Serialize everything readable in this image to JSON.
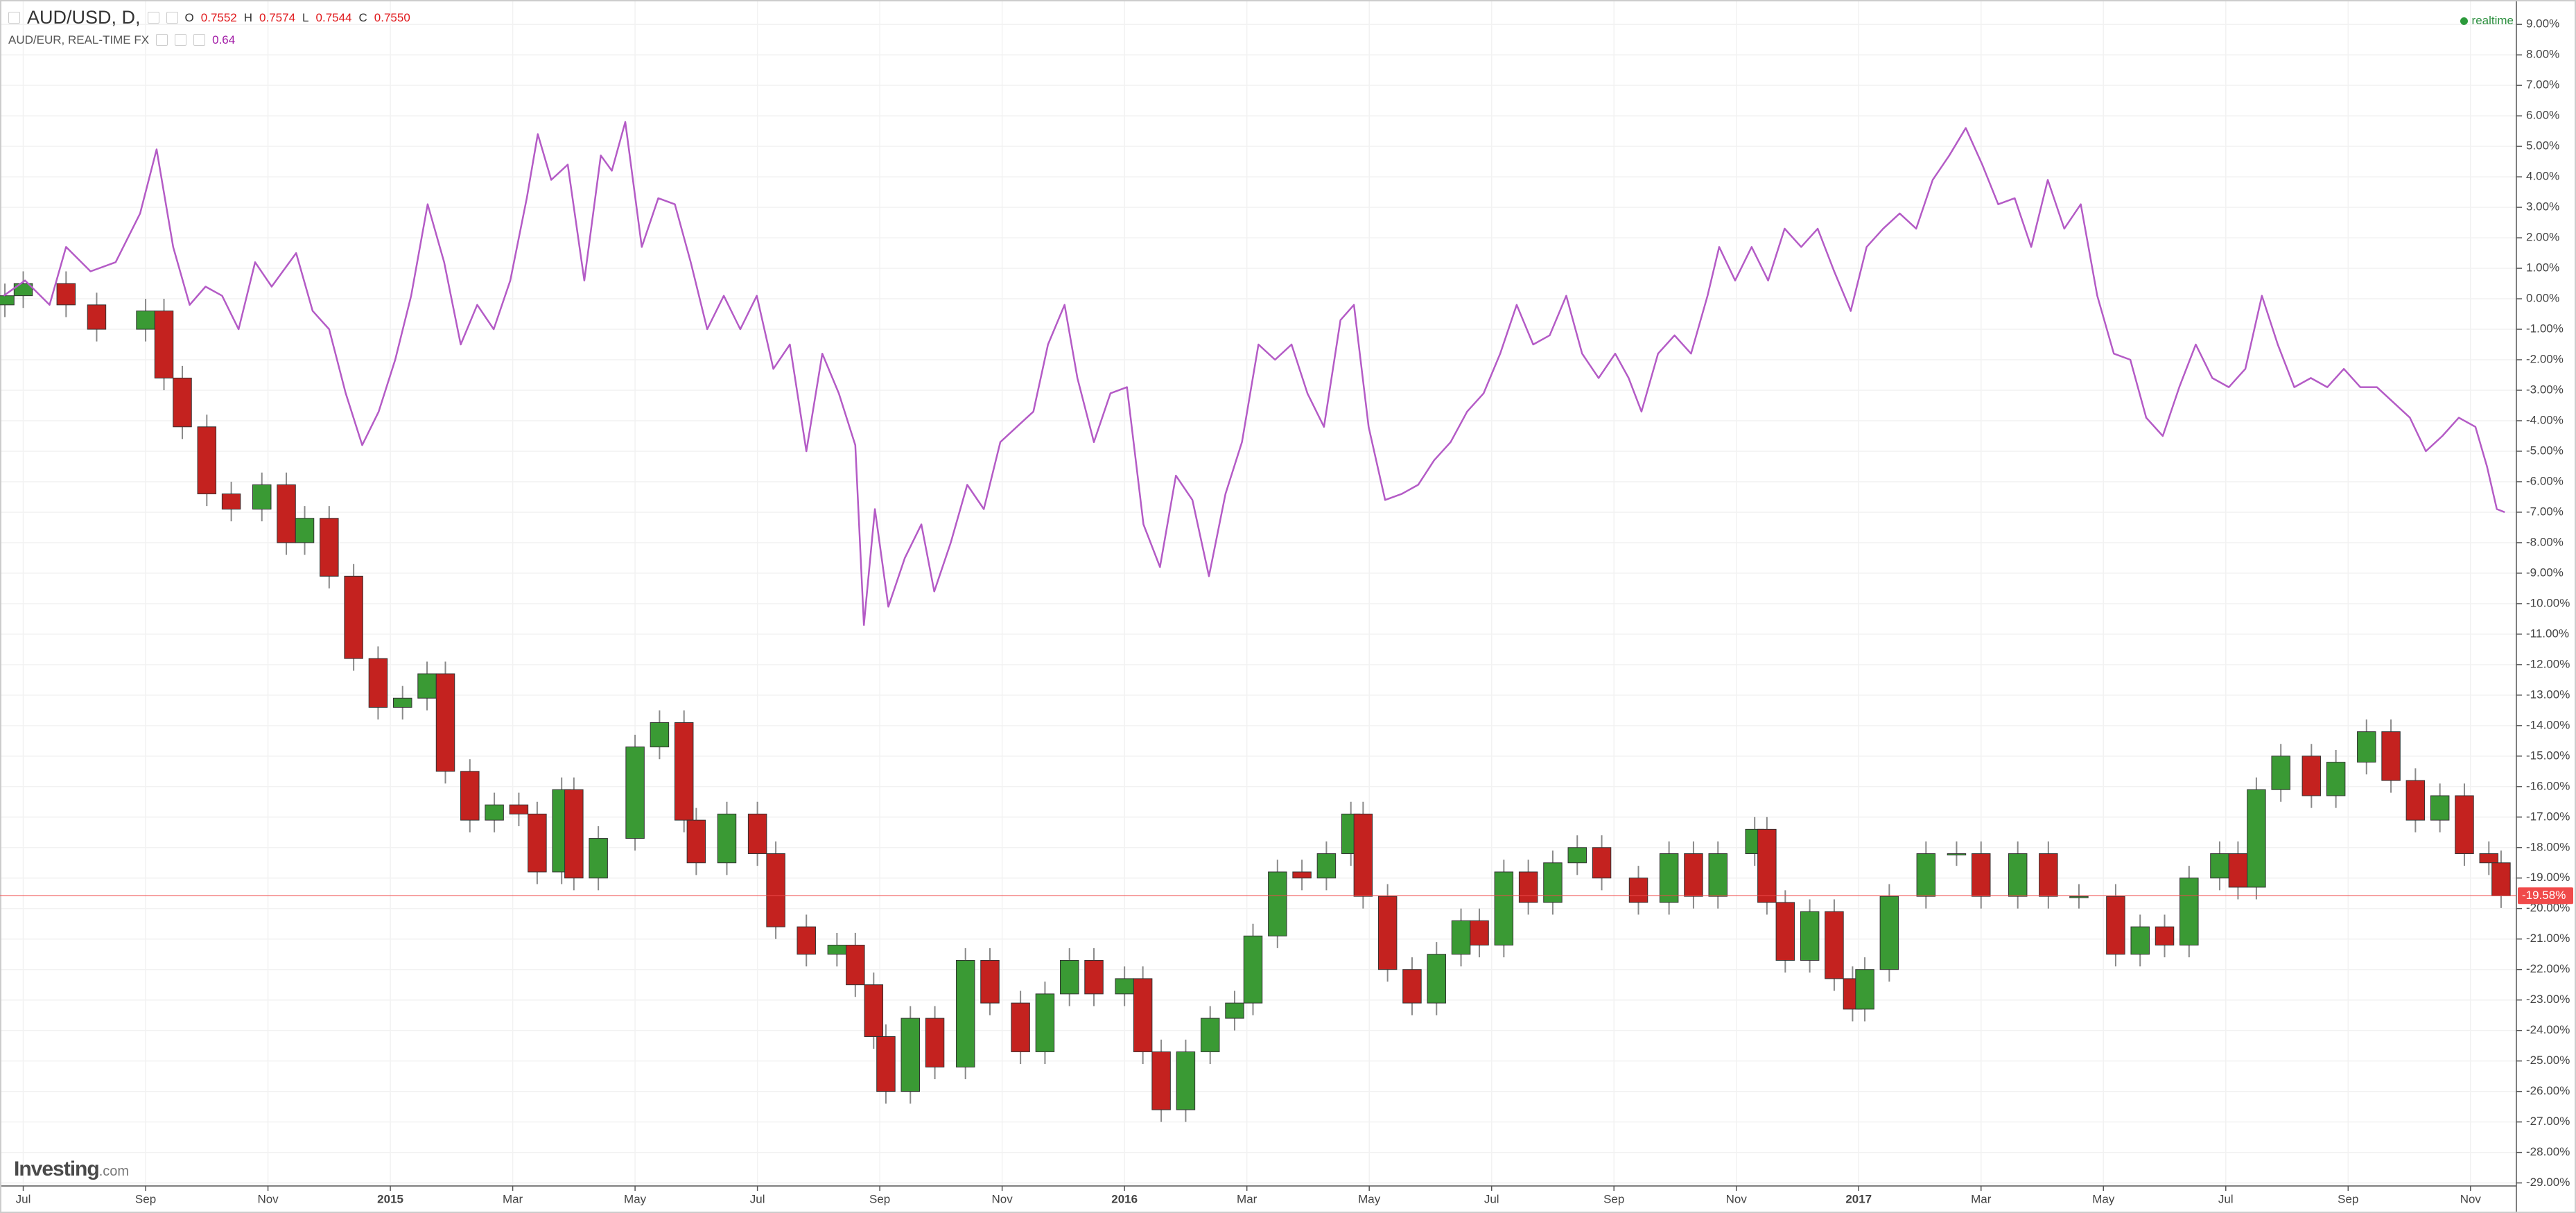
{
  "header": {
    "symbol": "AUD/USD, D,",
    "ohlc": [
      {
        "label": "O",
        "value": "0.7552"
      },
      {
        "label": "H",
        "value": "0.7574"
      },
      {
        "label": "L",
        "value": "0.7544"
      },
      {
        "label": "C",
        "value": "0.7550"
      }
    ],
    "compare": {
      "name": "AUD/EUR, REAL-TIME FX",
      "value": "0.64"
    },
    "status": "realtime",
    "logo": {
      "main": "Investing",
      "suffix": ".com"
    }
  },
  "chart_data": {
    "type": "candlestick",
    "grid": true,
    "xlim": [
      -0.38,
      40.75
    ],
    "xticks": [
      {
        "value": 0,
        "label": "Jul"
      },
      {
        "value": 2,
        "label": "Sep"
      },
      {
        "value": 4,
        "label": "Nov"
      },
      {
        "value": 6,
        "label": "2015"
      },
      {
        "value": 8,
        "label": "Mar"
      },
      {
        "value": 10,
        "label": "May"
      },
      {
        "value": 12,
        "label": "Jul"
      },
      {
        "value": 14,
        "label": "Sep"
      },
      {
        "value": 16,
        "label": "Nov"
      },
      {
        "value": 18,
        "label": "2016"
      },
      {
        "value": 20,
        "label": "Mar"
      },
      {
        "value": 22,
        "label": "May"
      },
      {
        "value": 24,
        "label": "Jul"
      },
      {
        "value": 26,
        "label": "Sep"
      },
      {
        "value": 28,
        "label": "Nov"
      },
      {
        "value": 30,
        "label": "2017"
      },
      {
        "value": 32,
        "label": "Mar"
      },
      {
        "value": 34,
        "label": "May"
      },
      {
        "value": 36,
        "label": "Jul"
      },
      {
        "value": 38,
        "label": "Sep"
      },
      {
        "value": 40,
        "label": "Nov"
      }
    ],
    "ylim": [
      -29.1,
      9.8
    ],
    "yticks": [
      {
        "value": 9,
        "label": "9.00%"
      },
      {
        "value": 8,
        "label": "8.00%"
      },
      {
        "value": 7,
        "label": "7.00%"
      },
      {
        "value": 6,
        "label": "6.00%"
      },
      {
        "value": 5,
        "label": "5.00%"
      },
      {
        "value": 4,
        "label": "4.00%"
      },
      {
        "value": 3,
        "label": "3.00%"
      },
      {
        "value": 2,
        "label": "2.00%"
      },
      {
        "value": 1,
        "label": "1.00%"
      },
      {
        "value": 0,
        "label": "0.00%"
      },
      {
        "value": -1,
        "label": "-1.00%"
      },
      {
        "value": -2,
        "label": "-2.00%"
      },
      {
        "value": -3,
        "label": "-3.00%"
      },
      {
        "value": -4,
        "label": "-4.00%"
      },
      {
        "value": -5,
        "label": "-5.00%"
      },
      {
        "value": -6,
        "label": "-6.00%"
      },
      {
        "value": -7,
        "label": "-7.00%"
      },
      {
        "value": -8,
        "label": "-8.00%"
      },
      {
        "value": -9,
        "label": "-9.00%"
      },
      {
        "value": -10,
        "label": "-10.00%"
      },
      {
        "value": -11,
        "label": "-11.00%"
      },
      {
        "value": -12,
        "label": "-12.00%"
      },
      {
        "value": -13,
        "label": "-13.00%"
      },
      {
        "value": -14,
        "label": "-14.00%"
      },
      {
        "value": -15,
        "label": "-15.00%"
      },
      {
        "value": -16,
        "label": "-16.00%"
      },
      {
        "value": -17,
        "label": "-17.00%"
      },
      {
        "value": -18,
        "label": "-18.00%"
      },
      {
        "value": -19,
        "label": "-19.00%"
      },
      {
        "value": -20,
        "label": "-20.00%"
      },
      {
        "value": -21,
        "label": "-21.00%"
      },
      {
        "value": -22,
        "label": "-22.00%"
      },
      {
        "value": -23,
        "label": "-23.00%"
      },
      {
        "value": -24,
        "label": "-24.00%"
      },
      {
        "value": -25,
        "label": "-25.00%"
      },
      {
        "value": -26,
        "label": "-26.00%"
      },
      {
        "value": -27,
        "label": "-27.00%"
      },
      {
        "value": -28,
        "label": "-28.00%"
      },
      {
        "value": -29,
        "label": "-29.00%"
      }
    ],
    "series": [
      {
        "type": "candlestick",
        "up_color": "#3a9a34",
        "down_color": "#c4221f",
        "wick_color": "#8a8a8a",
        "x": [
          -0.3,
          0,
          0.7,
          1.2,
          2,
          2.3,
          2.6,
          3,
          3.4,
          3.9,
          4.3,
          4.6,
          5,
          5.4,
          5.8,
          6.2,
          6.6,
          6.9,
          7.3,
          7.7,
          8.1,
          8.4,
          8.8,
          9,
          9.4,
          10,
          10.4,
          10.8,
          11,
          11.5,
          12,
          12.3,
          12.8,
          13.3,
          13.6,
          13.9,
          14.1,
          14.5,
          14.9,
          15.4,
          15.8,
          16.3,
          16.7,
          17.1,
          17.5,
          18,
          18.3,
          18.6,
          19,
          19.4,
          19.8,
          20.1,
          20.5,
          20.9,
          21.3,
          21.7,
          21.9,
          22.3,
          22.7,
          23.1,
          23.5,
          23.8,
          24.2,
          24.6,
          25,
          25.4,
          25.8,
          26.4,
          26.9,
          27.3,
          27.7,
          28.3,
          28.5,
          28.8,
          29.2,
          29.6,
          29.9,
          30.1,
          30.5,
          31.1,
          31.6,
          32,
          32.6,
          33.1,
          33.6,
          34.2,
          34.6,
          35,
          35.4,
          35.9,
          36.2,
          36.5,
          36.9,
          37.4,
          37.8,
          38.3,
          38.7,
          39.1,
          39.5,
          39.9,
          40.3,
          40.5
        ],
        "open": [
          -0.2,
          0.1,
          0.5,
          -0.2,
          -1,
          -0.4,
          -2.6,
          -4.2,
          -6.4,
          -6.9,
          -6.1,
          -8,
          -7.2,
          -9.1,
          -11.8,
          -13.4,
          -13.1,
          -12.3,
          -15.5,
          -17.1,
          -16.6,
          -16.9,
          -18.8,
          -16.1,
          -19,
          -17.7,
          -14.7,
          -13.9,
          -17.1,
          -18.5,
          -16.9,
          -18.2,
          -20.6,
          -21.5,
          -21.2,
          -22.5,
          -24.2,
          -26,
          -23.6,
          -25.2,
          -21.7,
          -23.1,
          -24.7,
          -22.8,
          -21.7,
          -22.8,
          -22.3,
          -24.7,
          -26.6,
          -24.7,
          -23.6,
          -23.1,
          -20.9,
          -18.8,
          -19,
          -18.2,
          -16.9,
          -19.6,
          -22,
          -23.1,
          -21.5,
          -20.4,
          -21.2,
          -18.8,
          -19.8,
          -18.5,
          -18,
          -19,
          -19.8,
          -18.2,
          -19.6,
          -18.2,
          -17.4,
          -19.8,
          -21.7,
          -20.1,
          -22.3,
          -23.3,
          -22,
          -19.6,
          -18.2,
          -18.2,
          -19.6,
          -18.2,
          -19.6,
          -19.6,
          -21.5,
          -20.6,
          -21.2,
          -19,
          -18.2,
          -19.3,
          -16.1,
          -15,
          -16.3,
          -15.2,
          -14.2,
          -15.8,
          -17.1,
          -16.3,
          -18.2,
          -18.5
        ],
        "high": [
          0.5,
          0.9,
          0.9,
          0.2,
          0,
          0,
          -2.2,
          -3.8,
          -6,
          -5.7,
          -5.7,
          -6.8,
          -6.8,
          -8.7,
          -11.4,
          -12.7,
          -11.9,
          -11.9,
          -15.1,
          -16.2,
          -16.2,
          -16.5,
          -15.7,
          -15.7,
          -17.3,
          -14.3,
          -13.5,
          -13.5,
          -16.7,
          -16.5,
          -16.5,
          -17.8,
          -20.2,
          -20.8,
          -20.8,
          -22.1,
          -23.8,
          -23.2,
          -23.2,
          -21.3,
          -21.3,
          -22.7,
          -22.4,
          -21.3,
          -21.3,
          -21.9,
          -21.9,
          -24.3,
          -24.3,
          -23.2,
          -22.7,
          -20.5,
          -18.4,
          -18.4,
          -17.8,
          -16.5,
          -16.5,
          -19.2,
          -21.6,
          -21.1,
          -20,
          -20,
          -18.4,
          -18.4,
          -18.1,
          -17.6,
          -17.6,
          -18.6,
          -17.8,
          -17.8,
          -17.8,
          -17,
          -17,
          -19.4,
          -19.7,
          -19.7,
          -21.9,
          -21.6,
          -19.2,
          -17.8,
          -17.8,
          -17.8,
          -17.8,
          -17.8,
          -19.2,
          -19.2,
          -20.2,
          -20.2,
          -18.6,
          -17.8,
          -17.8,
          -15.7,
          -14.6,
          -14.6,
          -14.8,
          -13.8,
          -13.8,
          -15.4,
          -15.9,
          -15.9,
          -17.8,
          -18.1
        ],
        "low": [
          -0.6,
          -0.3,
          -0.6,
          -1.4,
          -1.4,
          -3,
          -4.6,
          -6.8,
          -7.3,
          -7.3,
          -8.4,
          -8.4,
          -9.5,
          -12.2,
          -13.8,
          -13.8,
          -13.5,
          -15.9,
          -17.5,
          -17.5,
          -17.3,
          -19.2,
          -19.2,
          -19.4,
          -19.4,
          -18.1,
          -15.1,
          -17.5,
          -18.9,
          -18.9,
          -18.6,
          -21,
          -21.9,
          -21.9,
          -22.9,
          -24.6,
          -26.4,
          -26.4,
          -25.6,
          -25.6,
          -23.5,
          -25.1,
          -25.1,
          -23.2,
          -23.2,
          -23.2,
          -25.1,
          -27,
          -27,
          -25.1,
          -24,
          -23.5,
          -21.3,
          -19.4,
          -19.4,
          -18.6,
          -20,
          -22.4,
          -23.5,
          -23.5,
          -21.9,
          -21.6,
          -21.6,
          -20.2,
          -20.2,
          -18.9,
          -19.4,
          -20.2,
          -20.2,
          -20,
          -20,
          -18.6,
          -20.2,
          -22.1,
          -22.1,
          -22.7,
          -23.7,
          -23.7,
          -22.4,
          -20,
          -18.6,
          -20,
          -20,
          -20,
          -20,
          -21.9,
          -21.9,
          -21.6,
          -21.6,
          -19.4,
          -19.7,
          -19.7,
          -16.5,
          -16.7,
          -16.7,
          -15.6,
          -16.2,
          -17.5,
          -17.5,
          -18.6,
          -18.9,
          -19.98
        ],
        "close": [
          0.1,
          0.5,
          -0.2,
          -1,
          -0.4,
          -2.6,
          -4.2,
          -6.4,
          -6.9,
          -6.1,
          -8,
          -7.2,
          -9.1,
          -11.8,
          -13.4,
          -13.1,
          -12.3,
          -15.5,
          -17.1,
          -16.6,
          -16.9,
          -18.8,
          -16.1,
          -19,
          -17.7,
          -14.7,
          -13.9,
          -17.1,
          -18.5,
          -16.9,
          -18.2,
          -20.6,
          -21.5,
          -21.2,
          -22.5,
          -24.2,
          -26,
          -23.6,
          -25.2,
          -21.7,
          -23.1,
          -24.7,
          -22.8,
          -21.7,
          -22.8,
          -22.3,
          -24.7,
          -26.6,
          -24.7,
          -23.6,
          -23.1,
          -20.9,
          -18.8,
          -19,
          -18.2,
          -16.9,
          -19.6,
          -22,
          -23.1,
          -21.5,
          -20.4,
          -21.2,
          -18.8,
          -19.8,
          -18.5,
          -18,
          -19,
          -19.8,
          -18.2,
          -19.6,
          -18.2,
          -17.4,
          -19.8,
          -21.7,
          -20.1,
          -22.3,
          -23.3,
          -22,
          -19.6,
          -18.2,
          -18.2,
          -19.6,
          -18.2,
          -19.6,
          -19.6,
          -21.5,
          -20.6,
          -21.2,
          -19,
          -18.2,
          -19.3,
          -16.1,
          -15,
          -16.3,
          -15.2,
          -14.2,
          -15.8,
          -17.1,
          -16.3,
          -18.2,
          -18.5,
          -19.58
        ]
      },
      {
        "type": "line",
        "color": "#b45bc6",
        "x": [
          -0.32,
          0.03,
          0.43,
          0.7,
          1.1,
          1.51,
          1.91,
          2.18,
          2.45,
          2.72,
          2.98,
          3.25,
          3.52,
          3.79,
          4.06,
          4.46,
          4.73,
          5,
          5.27,
          5.54,
          5.81,
          6.08,
          6.34,
          6.61,
          6.88,
          7.15,
          7.42,
          7.69,
          7.96,
          8.23,
          8.41,
          8.63,
          8.9,
          9.17,
          9.44,
          9.62,
          9.84,
          10.11,
          10.38,
          10.65,
          10.91,
          11.18,
          11.45,
          11.72,
          11.99,
          12.26,
          12.53,
          12.8,
          13.06,
          13.33,
          13.6,
          13.74,
          13.92,
          14.14,
          14.41,
          14.68,
          14.89,
          15.16,
          15.43,
          15.7,
          15.97,
          16.24,
          16.51,
          16.75,
          17.02,
          17.23,
          17.5,
          17.77,
          18.04,
          18.31,
          18.58,
          18.84,
          19.11,
          19.38,
          19.65,
          19.92,
          20.19,
          20.46,
          20.73,
          20.99,
          21.26,
          21.53,
          21.75,
          21.99,
          22.26,
          22.53,
          22.8,
          23.06,
          23.33,
          23.6,
          23.87,
          24.14,
          24.41,
          24.68,
          24.95,
          25.22,
          25.48,
          25.75,
          26.02,
          26.24,
          26.45,
          26.72,
          26.99,
          27.26,
          27.53,
          27.72,
          27.98,
          28.25,
          28.52,
          28.79,
          29.06,
          29.33,
          29.6,
          29.87,
          30.13,
          30.4,
          30.67,
          30.94,
          31.21,
          31.48,
          31.75,
          32.02,
          32.28,
          32.55,
          32.82,
          33.09,
          33.36,
          33.63,
          33.9,
          34.17,
          34.44,
          34.7,
          34.97,
          35.24,
          35.51,
          35.78,
          36.05,
          36.32,
          36.59,
          36.85,
          37.12,
          37.39,
          37.66,
          37.93,
          38.2,
          38.47,
          38.74,
          39.01,
          39.27,
          39.54,
          39.81,
          40.08,
          40.27,
          40.43,
          40.56
        ],
        "values": [
          0.1,
          0.6,
          -0.2,
          1.7,
          0.9,
          1.2,
          2.8,
          4.9,
          1.7,
          -0.2,
          0.4,
          0.1,
          -1,
          1.2,
          0.4,
          1.5,
          -0.4,
          -1,
          -3.1,
          -4.8,
          -3.7,
          -2,
          0.1,
          3.1,
          1.2,
          -1.5,
          -0.2,
          -1,
          0.6,
          3.3,
          5.4,
          3.9,
          4.4,
          0.6,
          4.7,
          4.2,
          5.8,
          1.7,
          3.3,
          3.1,
          1.2,
          -1,
          0.1,
          -1,
          0.1,
          -2.3,
          -1.5,
          -5,
          -1.8,
          -3.1,
          -4.8,
          -10.7,
          -6.9,
          -10.1,
          -8.5,
          -7.4,
          -9.6,
          -8,
          -6.1,
          -6.9,
          -4.7,
          -4.2,
          -3.7,
          -1.5,
          -0.2,
          -2.6,
          -4.7,
          -3.1,
          -2.9,
          -7.4,
          -8.8,
          -5.8,
          -6.6,
          -9.1,
          -6.4,
          -4.7,
          -1.5,
          -2,
          -1.5,
          -3.1,
          -4.2,
          -0.7,
          -0.2,
          -4.2,
          -6.6,
          -6.4,
          -6.1,
          -5.3,
          -4.7,
          -3.7,
          -3.1,
          -1.8,
          -0.2,
          -1.5,
          -1.2,
          0.1,
          -1.8,
          -2.6,
          -1.8,
          -2.6,
          -3.7,
          -1.8,
          -1.2,
          -1.8,
          0.1,
          1.7,
          0.6,
          1.7,
          0.6,
          2.3,
          1.7,
          2.3,
          0.9,
          -0.4,
          1.7,
          2.3,
          2.8,
          2.3,
          3.9,
          4.7,
          5.6,
          4.4,
          3.1,
          3.3,
          1.7,
          3.9,
          2.3,
          3.1,
          0.1,
          -1.8,
          -2,
          -3.9,
          -4.5,
          -2.9,
          -1.5,
          -2.6,
          -2.9,
          -2.3,
          0.1,
          -1.5,
          -2.9,
          -2.6,
          -2.9,
          -2.3,
          -2.9,
          -2.9,
          -3.4,
          -3.9,
          -5,
          -4.5,
          -3.9,
          -4.2,
          -5.5,
          -6.9,
          -7
        ]
      }
    ],
    "price_line": {
      "value": -19.58,
      "label": "-19.58%",
      "color": "#f04a4a"
    }
  }
}
